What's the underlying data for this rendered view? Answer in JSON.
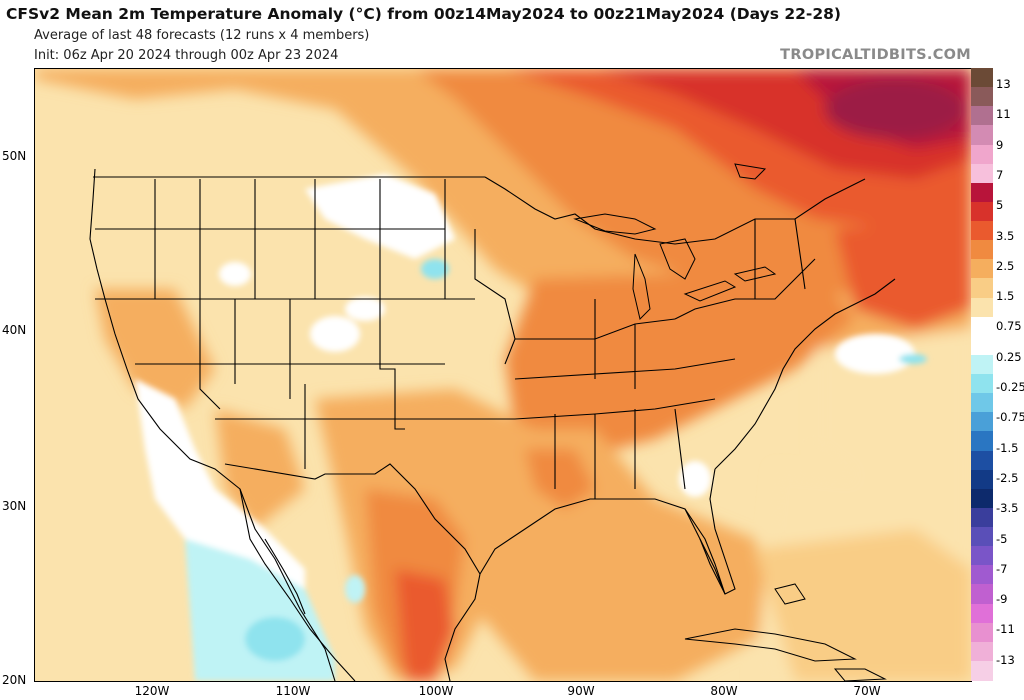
{
  "header": {
    "title": "CFSv2 Mean 2m Temperature Anomaly (°C) from 00z14May2024 to 00z21May2024 (Days 22-28)",
    "subtitle": "Average of last 48 forecasts (12 runs x 4 members)",
    "init": "Init: 06z Apr 20 2024 through 00z Apr 23 2024",
    "brand": "TROPICALTIDBITS.COM"
  },
  "map": {
    "lat_labels": [
      "50N",
      "40N",
      "30N",
      "20N"
    ],
    "lon_labels": [
      "120W",
      "110W",
      "100W",
      "90W",
      "80W",
      "70W"
    ]
  },
  "colorbar": {
    "labels": [
      "13",
      "11",
      "9",
      "7",
      "5",
      "3.5",
      "2.5",
      "1.5",
      "0.75",
      "0.25",
      "-0.25",
      "-0.75",
      "-1.5",
      "-2.5",
      "-3.5",
      "-5",
      "-7",
      "-9",
      "-11",
      "-13"
    ],
    "colors": [
      "#6b4a36",
      "#8a5a5a",
      "#b07090",
      "#d38bb3",
      "#f0a6cc",
      "#f7c0dc",
      "#b8143a",
      "#d8322b",
      "#ea5a2e",
      "#f08a40",
      "#f5ae5e",
      "#f9cd86",
      "#fbe3ad",
      "#ffffff",
      "#ffffff",
      "#bff3f5",
      "#8fe3ee",
      "#6fc8e8",
      "#4aa0d8",
      "#2a76c2",
      "#1d4fa3",
      "#123a86",
      "#0d2a6c",
      "#3a3e9c",
      "#5a4fb8",
      "#7a55c8",
      "#a05ad0",
      "#c060d0",
      "#e070d8",
      "#e890d0",
      "#f0b0d8",
      "#f6cfe6"
    ]
  }
}
